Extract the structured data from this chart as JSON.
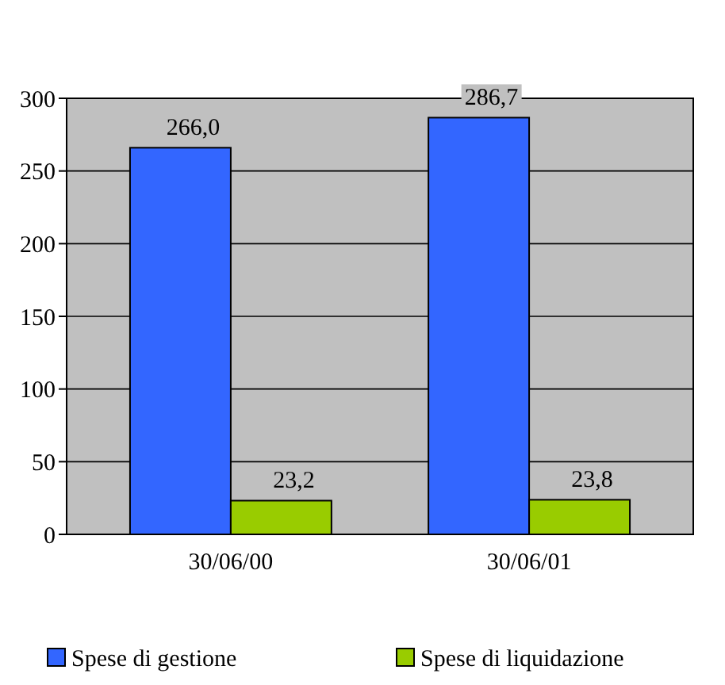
{
  "chart_data": {
    "type": "bar",
    "categories": [
      "30/06/00",
      "30/06/01"
    ],
    "series": [
      {
        "name": "Spese di gestione",
        "color": "#3366ff",
        "values": [
          266.0,
          286.7
        ],
        "value_labels": [
          "266,0",
          "286,7"
        ]
      },
      {
        "name": "Spese di liquidazione",
        "color": "#99cc00",
        "values": [
          23.2,
          23.8
        ],
        "value_labels": [
          "23,2",
          "23,8"
        ]
      }
    ],
    "ylim": [
      0,
      300
    ],
    "yticks": [
      0,
      50,
      100,
      150,
      200,
      250,
      300
    ],
    "grid": "y",
    "legend": "bottom"
  }
}
